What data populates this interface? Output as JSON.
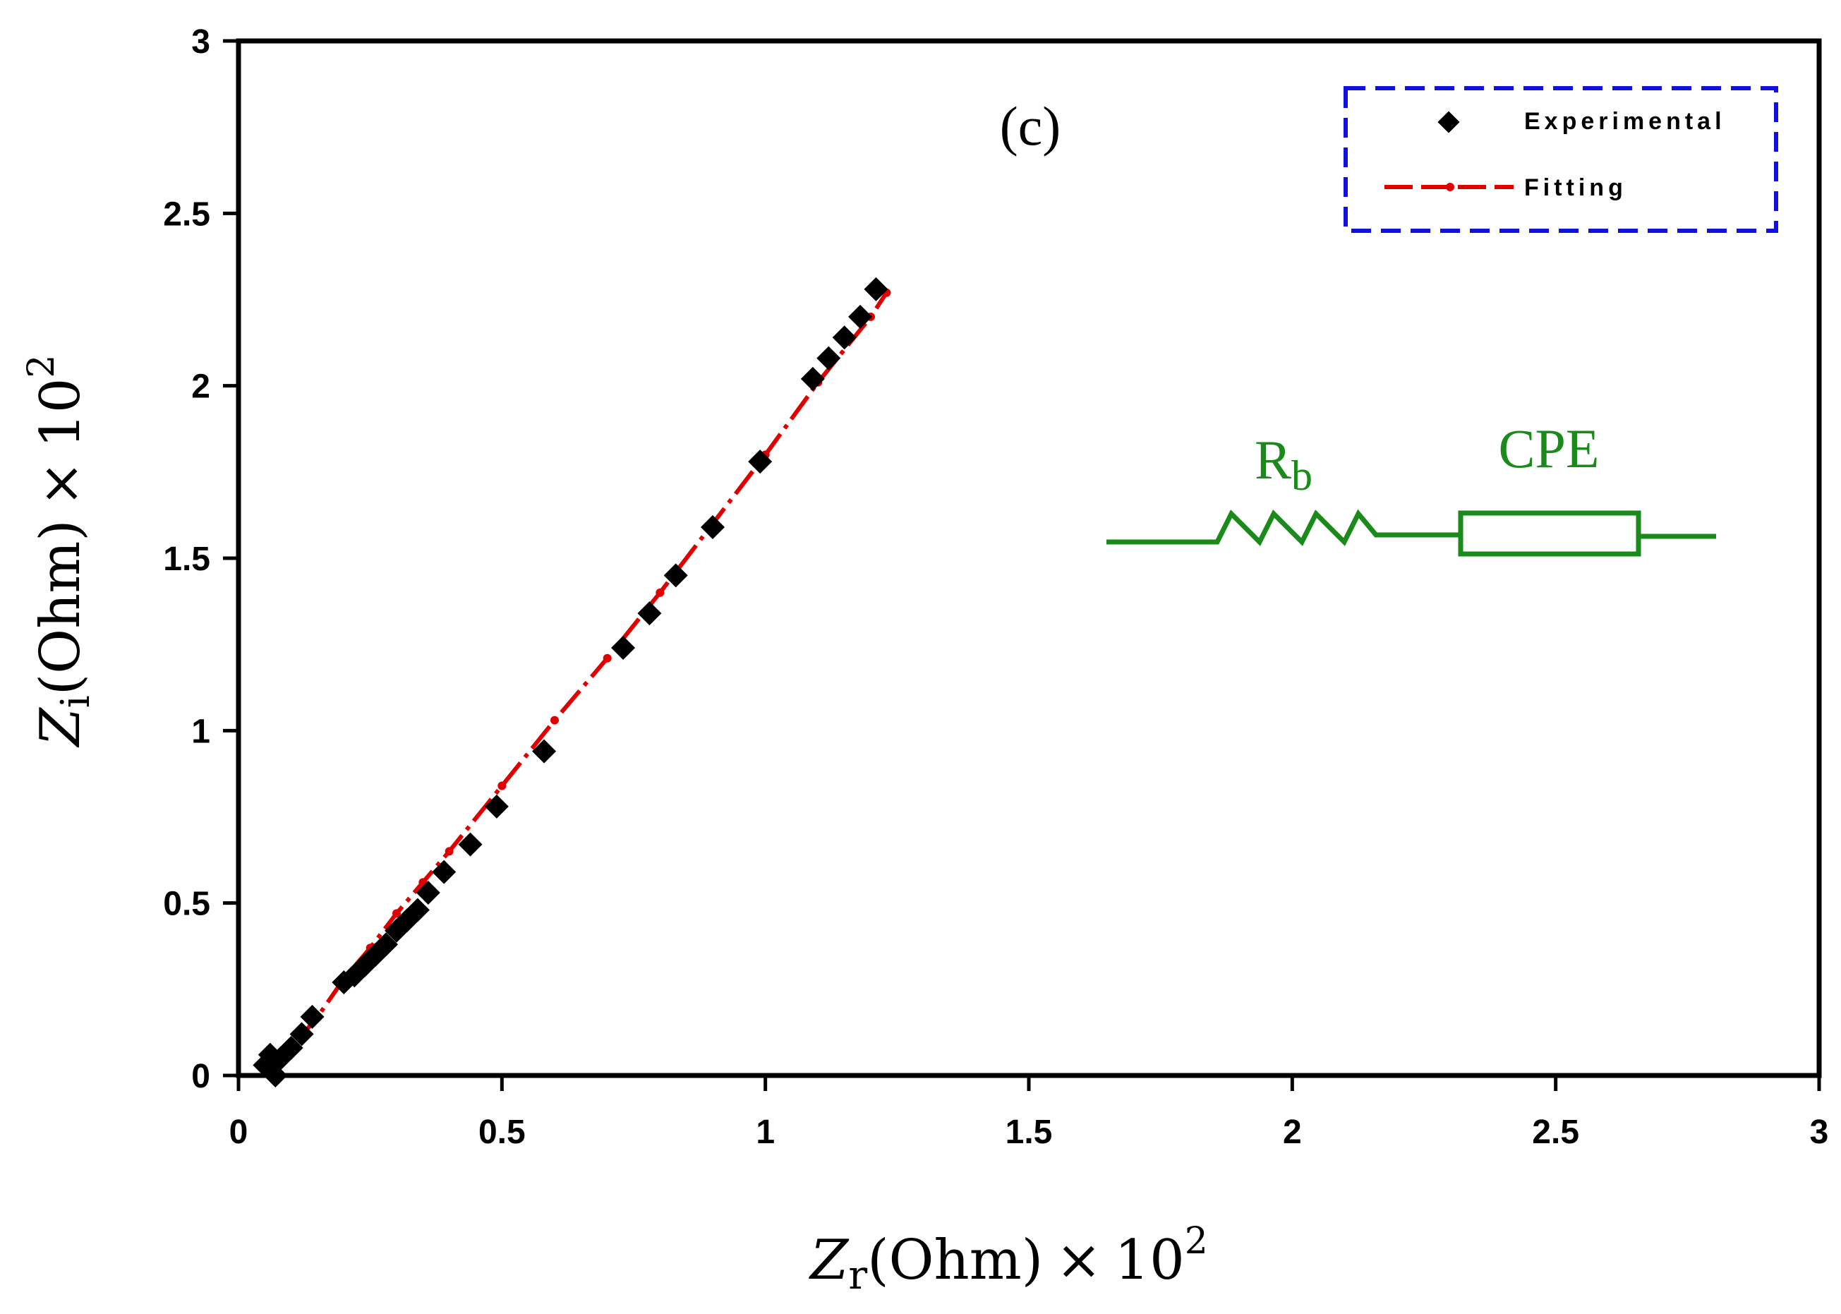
{
  "chart_data": {
    "type": "scatter",
    "panel_label": "(c)",
    "xlabel": {
      "symbol": "Z",
      "sub": "r",
      "unit": "(Ohm)",
      "times": "×",
      "base": "10",
      "exp": "2"
    },
    "ylabel": {
      "symbol": "Z",
      "sub": "i",
      "unit": "(Ohm)",
      "times": "×",
      "base": "10",
      "exp": "2"
    },
    "xlim": [
      0,
      3
    ],
    "ylim": [
      0,
      3
    ],
    "xticks": [
      0,
      0.5,
      1,
      1.5,
      2,
      2.5,
      3
    ],
    "yticks": [
      0,
      0.5,
      1,
      1.5,
      2,
      2.5,
      3
    ],
    "xtick_labels": [
      "0",
      "0.5",
      "1",
      "1.5",
      "2",
      "2.5",
      "3"
    ],
    "ytick_labels": [
      "0",
      "0.5",
      "1",
      "1.5",
      "2",
      "2.5",
      "3"
    ],
    "legend": {
      "position": "top-right",
      "entries": [
        "Experimental",
        "Fitting"
      ]
    },
    "series": [
      {
        "name": "Experimental",
        "marker": "diamond",
        "color": "#000000",
        "x": [
          0.05,
          0.06,
          0.07,
          0.08,
          0.1,
          0.12,
          0.14,
          0.2,
          0.22,
          0.24,
          0.26,
          0.28,
          0.3,
          0.32,
          0.34,
          0.36,
          0.39,
          0.44,
          0.49,
          0.58,
          0.73,
          0.78,
          0.83,
          0.9,
          0.99,
          1.09,
          1.12,
          1.15,
          1.18,
          1.21
        ],
        "y": [
          0.03,
          0.06,
          0.0,
          0.05,
          0.08,
          0.12,
          0.17,
          0.27,
          0.29,
          0.32,
          0.35,
          0.38,
          0.42,
          0.45,
          0.48,
          0.53,
          0.59,
          0.67,
          0.78,
          0.94,
          1.24,
          1.34,
          1.45,
          1.59,
          1.78,
          2.02,
          2.08,
          2.14,
          2.2,
          2.28
        ]
      },
      {
        "name": "Fitting",
        "marker": "dash-dot",
        "color": "#e00000",
        "x": [
          0.06,
          0.1,
          0.15,
          0.2,
          0.25,
          0.3,
          0.35,
          0.4,
          0.5,
          0.6,
          0.7,
          0.8,
          0.9,
          1.0,
          1.1,
          1.2,
          1.23
        ],
        "y": [
          0.0,
          0.08,
          0.17,
          0.28,
          0.37,
          0.47,
          0.56,
          0.65,
          0.84,
          1.03,
          1.21,
          1.4,
          1.6,
          1.8,
          2.01,
          2.2,
          2.27
        ]
      }
    ],
    "circuit": {
      "resistor_label": "R",
      "resistor_sub": "b",
      "element_label": "CPE",
      "color": "#1a8a1a"
    },
    "colors": {
      "axis": "#000000",
      "legend_border": "#1010e0",
      "experimental": "#000000",
      "fitting": "#e00000",
      "circuit": "#1a8a1a"
    }
  }
}
